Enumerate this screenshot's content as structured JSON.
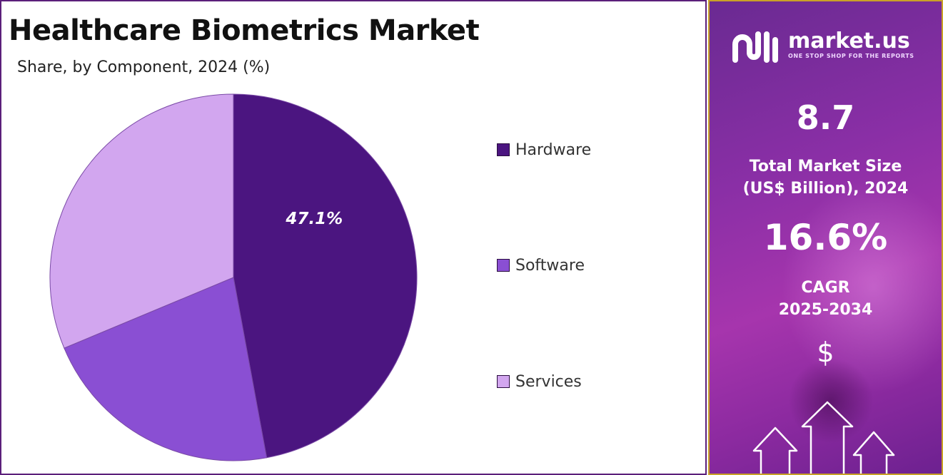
{
  "chart_data": {
    "type": "pie",
    "title": "Healthcare Biometrics Market",
    "subtitle": "Share, by Component, 2024 (%)",
    "categories": [
      "Hardware",
      "Software",
      "Services"
    ],
    "values": [
      47.1,
      21.6,
      31.3
    ],
    "data_labels": [
      "47.1%",
      "",
      ""
    ],
    "colors": [
      "#4b1580",
      "#8a4fd3",
      "#d2a6ef"
    ],
    "legend_position": "right"
  },
  "side_panel": {
    "brand": "market.us",
    "tagline": "ONE STOP SHOP FOR THE REPORTS",
    "market_size_value": "8.7",
    "market_size_label_line1": "Total Market Size",
    "market_size_label_line2": "(US$ Billion), 2024",
    "cagr_value": "16.6%",
    "cagr_label_line1": "CAGR",
    "cagr_label_line2": "2025-2034",
    "currency_symbol": "$",
    "icons": [
      "market-us-logo-icon",
      "dollar-icon",
      "growth-arrows-icon"
    ]
  }
}
